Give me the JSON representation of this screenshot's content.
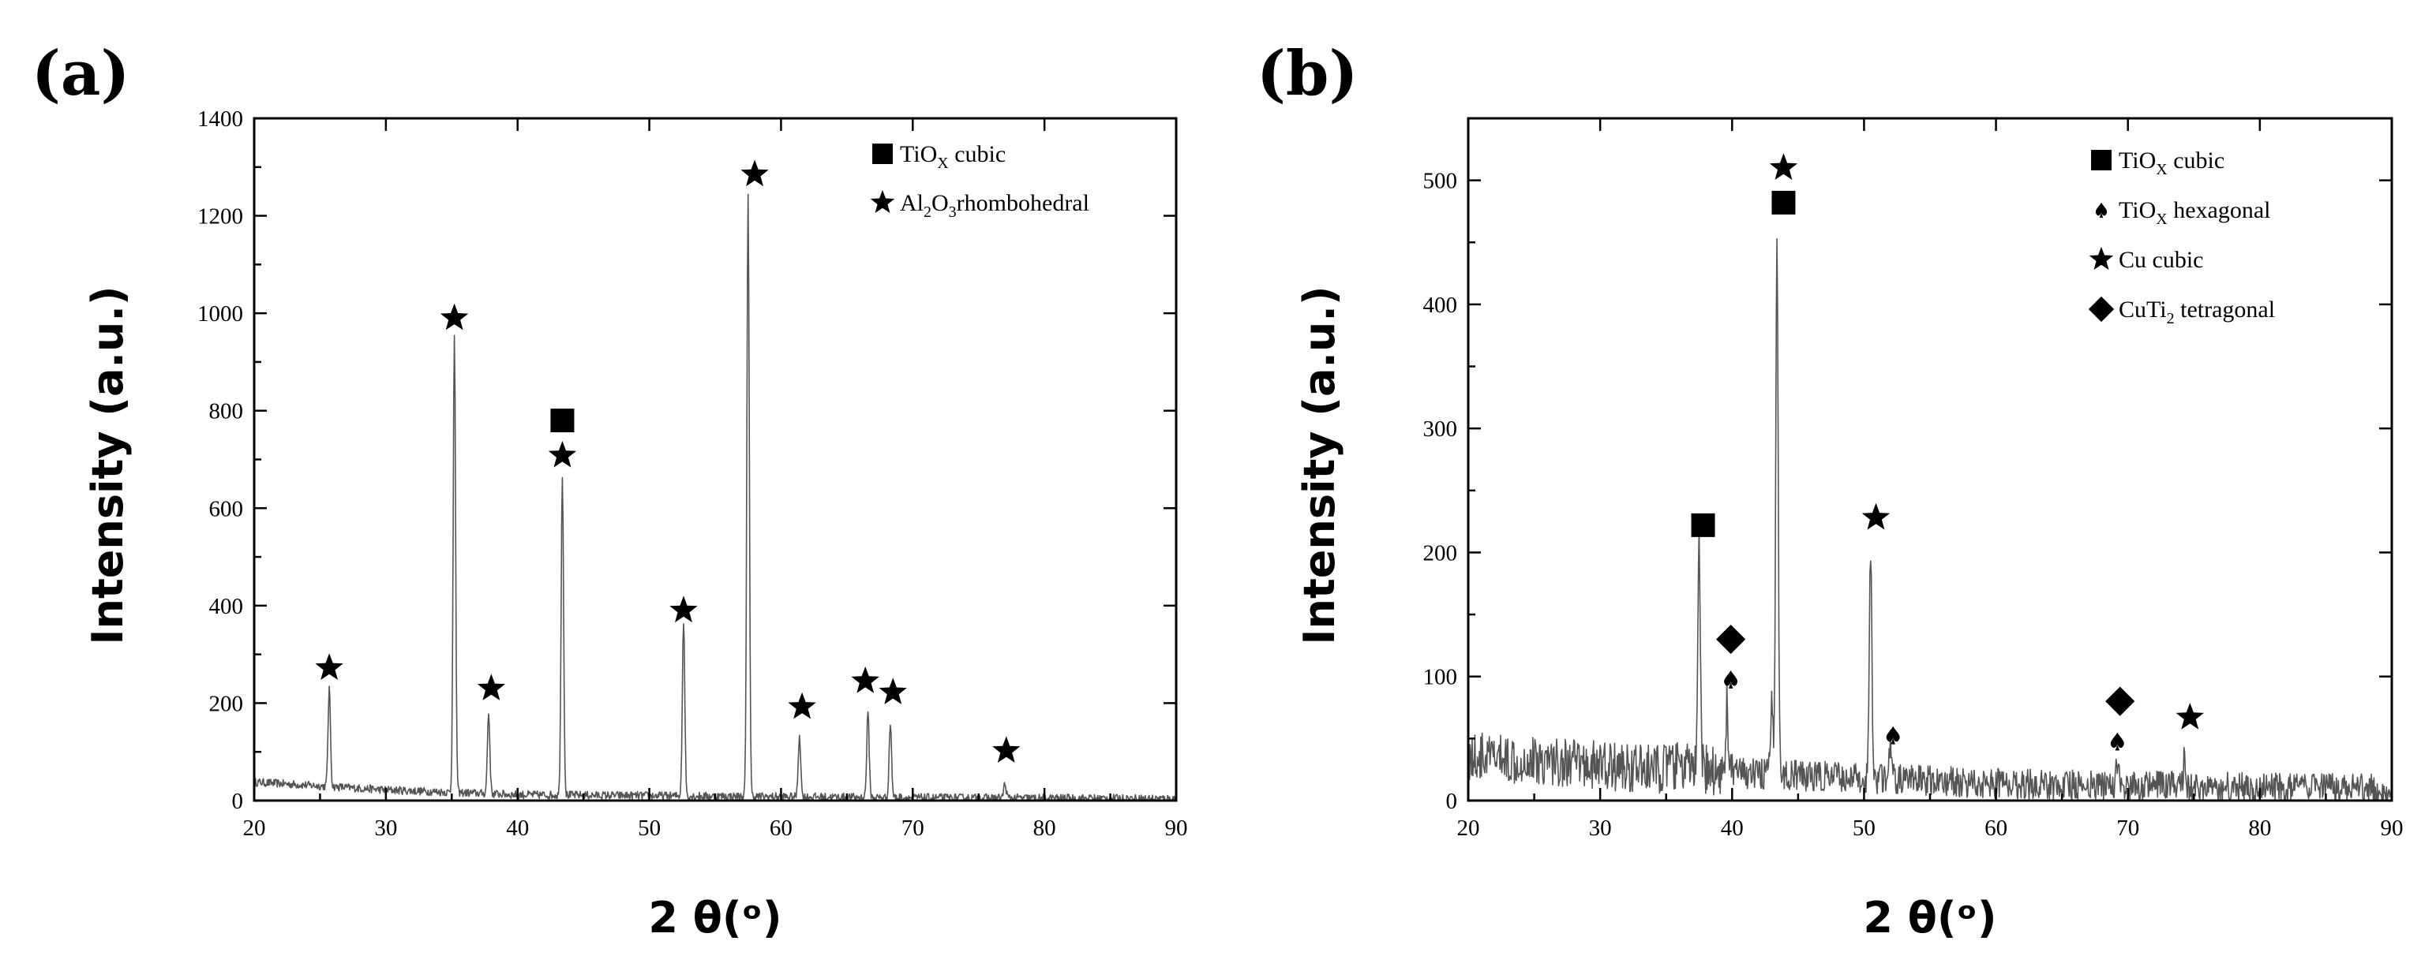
{
  "chart_data": [
    {
      "panel": "(a)",
      "type": "line",
      "xlabel": "2 θ(ᵒ)",
      "ylabel": "Intensity (a.u.)",
      "xlim": [
        20,
        90
      ],
      "ylim": [
        0,
        1400
      ],
      "xticks": [
        20,
        30,
        40,
        50,
        60,
        70,
        80,
        90
      ],
      "yticks": [
        0,
        200,
        400,
        600,
        800,
        1000,
        1200,
        1400
      ],
      "baseline": [
        [
          20,
          38
        ],
        [
          30,
          22
        ],
        [
          40,
          12
        ],
        [
          50,
          10
        ],
        [
          60,
          8
        ],
        [
          70,
          6
        ],
        [
          80,
          5
        ],
        [
          90,
          4
        ]
      ],
      "peaks": [
        {
          "x": 25.7,
          "y": 230
        },
        {
          "x": 35.2,
          "y": 950
        },
        {
          "x": 37.8,
          "y": 180
        },
        {
          "x": 43.4,
          "y": 670
        },
        {
          "x": 52.6,
          "y": 370
        },
        {
          "x": 57.5,
          "y": 1245
        },
        {
          "x": 61.4,
          "y": 135
        },
        {
          "x": 66.6,
          "y": 180
        },
        {
          "x": 68.3,
          "y": 160
        },
        {
          "x": 77.0,
          "y": 35
        }
      ],
      "markers": [
        {
          "symbol": "star",
          "x": 25.7,
          "y": 272
        },
        {
          "symbol": "star",
          "x": 35.2,
          "y": 990
        },
        {
          "symbol": "star",
          "x": 38.0,
          "y": 230
        },
        {
          "symbol": "square",
          "x": 43.4,
          "y": 780
        },
        {
          "symbol": "star",
          "x": 43.4,
          "y": 708
        },
        {
          "symbol": "star",
          "x": 52.6,
          "y": 390
        },
        {
          "symbol": "star",
          "x": 58.0,
          "y": 1285
        },
        {
          "symbol": "star",
          "x": 61.6,
          "y": 192
        },
        {
          "symbol": "star",
          "x": 66.4,
          "y": 245
        },
        {
          "symbol": "star",
          "x": 68.5,
          "y": 222
        },
        {
          "symbol": "star",
          "x": 77.1,
          "y": 102
        }
      ],
      "legend": [
        {
          "symbol": "square",
          "text": "TiO",
          "sub": "X",
          "suffix": " cubic"
        },
        {
          "symbol": "star",
          "text": "Al",
          "sub": "2",
          "mid": "O",
          "sub2": "3",
          "suffix": "rhombohedral"
        }
      ]
    },
    {
      "panel": "(b)",
      "type": "line",
      "xlabel": "2 θ(ᵒ)",
      "ylabel": "Intensity (a.u.)",
      "xlim": [
        20,
        90
      ],
      "ylim": [
        0,
        550
      ],
      "xticks": [
        20,
        30,
        40,
        50,
        60,
        70,
        80,
        90
      ],
      "yticks": [
        0,
        100,
        200,
        300,
        400,
        500
      ],
      "baseline": [
        [
          20,
          35
        ],
        [
          25,
          33
        ],
        [
          30,
          28
        ],
        [
          34,
          25
        ],
        [
          36,
          28
        ],
        [
          40,
          22
        ],
        [
          45,
          20
        ],
        [
          50,
          18
        ],
        [
          55,
          16
        ],
        [
          60,
          14
        ],
        [
          70,
          12
        ],
        [
          80,
          10
        ],
        [
          90,
          9
        ]
      ],
      "peaks": [
        {
          "x": 37.5,
          "y": 200
        },
        {
          "x": 39.6,
          "y": 78
        },
        {
          "x": 43.0,
          "y": 80
        },
        {
          "x": 43.4,
          "y": 465
        },
        {
          "x": 50.5,
          "y": 205
        },
        {
          "x": 52.0,
          "y": 45
        },
        {
          "x": 69.2,
          "y": 30
        },
        {
          "x": 74.3,
          "y": 40
        }
      ],
      "markers": [
        {
          "symbol": "square",
          "x": 37.8,
          "y": 222
        },
        {
          "symbol": "diamond",
          "x": 39.9,
          "y": 130
        },
        {
          "symbol": "spade",
          "x": 39.9,
          "y": 98
        },
        {
          "symbol": "square",
          "x": 43.9,
          "y": 482
        },
        {
          "symbol": "star",
          "x": 43.9,
          "y": 510
        },
        {
          "symbol": "star",
          "x": 50.9,
          "y": 228
        },
        {
          "symbol": "spade",
          "x": 52.2,
          "y": 53
        },
        {
          "symbol": "diamond",
          "x": 69.4,
          "y": 80
        },
        {
          "symbol": "spade",
          "x": 69.2,
          "y": 48
        },
        {
          "symbol": "star",
          "x": 74.7,
          "y": 67
        }
      ],
      "legend": [
        {
          "symbol": "square",
          "text": "TiO",
          "sub": "X",
          "suffix": " cubic"
        },
        {
          "symbol": "spade",
          "text": "TiO",
          "sub": "X",
          "suffix": " hexagonal"
        },
        {
          "symbol": "star",
          "text": "Cu cubic"
        },
        {
          "symbol": "diamond",
          "text": "CuTi",
          "sub": "2",
          "suffix": " tetragonal"
        }
      ]
    }
  ]
}
